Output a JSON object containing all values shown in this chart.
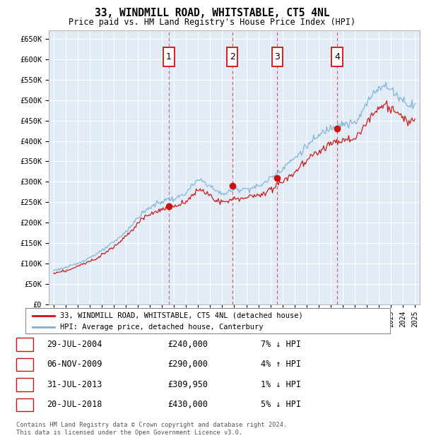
{
  "title": "33, WINDMILL ROAD, WHITSTABLE, CT5 4NL",
  "subtitle": "Price paid vs. HM Land Registry's House Price Index (HPI)",
  "hpi_color": "#7ab0d4",
  "price_color": "#cc1111",
  "plot_bg": "#e8f0f8",
  "ylim": [
    0,
    670000
  ],
  "yticks": [
    0,
    50000,
    100000,
    150000,
    200000,
    250000,
    300000,
    350000,
    400000,
    450000,
    500000,
    550000,
    600000,
    650000
  ],
  "xlim_start": 1994.6,
  "xlim_end": 2025.4,
  "sales": [
    {
      "num": 1,
      "date": "29-JUL-2004",
      "price": 240000,
      "x": 2004.57,
      "pct": "7%",
      "dir": "↓"
    },
    {
      "num": 2,
      "date": "06-NOV-2009",
      "price": 290000,
      "x": 2009.84,
      "pct": "4%",
      "dir": "↑"
    },
    {
      "num": 3,
      "date": "31-JUL-2013",
      "price": 309950,
      "x": 2013.57,
      "pct": "1%",
      "dir": "↓"
    },
    {
      "num": 4,
      "date": "20-JUL-2018",
      "price": 430000,
      "x": 2018.54,
      "pct": "5%",
      "dir": "↓"
    }
  ],
  "legend_label_price": "33, WINDMILL ROAD, WHITSTABLE, CT5 4NL (detached house)",
  "legend_label_hpi": "HPI: Average price, detached house, Canterbury",
  "table_rows": [
    {
      "num": "1",
      "date": "29-JUL-2004",
      "price": "£240,000",
      "info": "7% ↓ HPI"
    },
    {
      "num": "2",
      "date": "06-NOV-2009",
      "price": "£290,000",
      "info": "4% ↑ HPI"
    },
    {
      "num": "3",
      "date": "31-JUL-2013",
      "price": "£309,950",
      "info": "1% ↓ HPI"
    },
    {
      "num": "4",
      "date": "20-JUL-2018",
      "price": "£430,000",
      "info": "5% ↓ HPI"
    }
  ],
  "footnote": "Contains HM Land Registry data © Crown copyright and database right 2024.\nThis data is licensed under the Open Government Licence v3.0."
}
